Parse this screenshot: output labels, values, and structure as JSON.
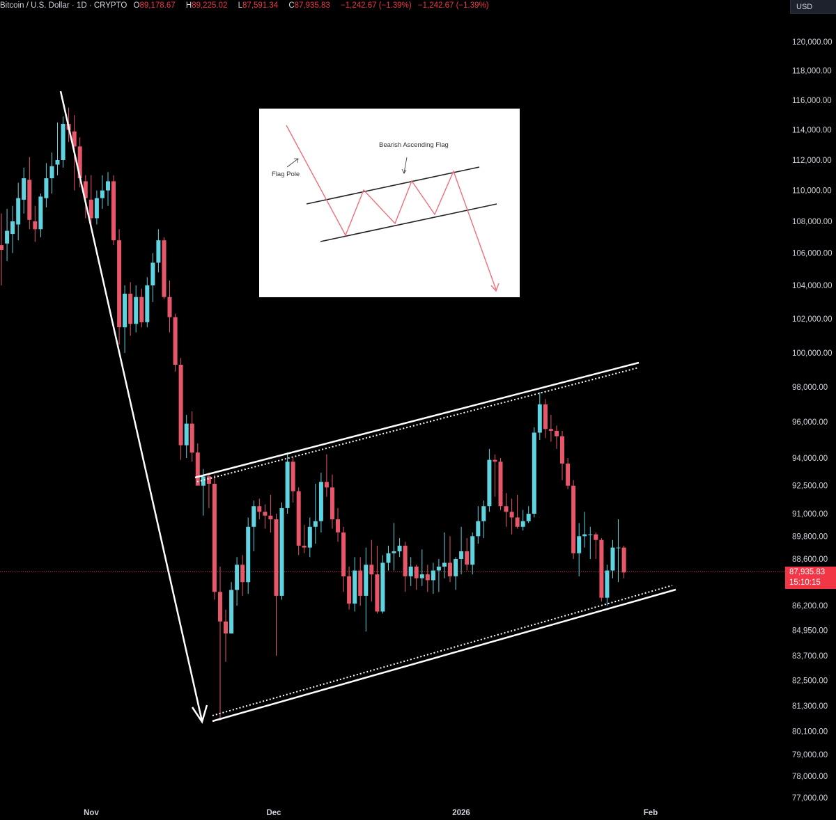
{
  "header": {
    "symbol": "Bitcoin / U.S. Dollar · 1D · CRYPTO",
    "open_label": "O",
    "open": "89,178.67",
    "high_label": "H",
    "high": "89,225.02",
    "low_label": "L",
    "low": "87,591.34",
    "close_label": "C",
    "close": "87,935.83",
    "change": "−1,242.67 (−1.39%)",
    "change2": "−1,242.67 (−1.39%)"
  },
  "currency": "USD",
  "price_badge": {
    "price": "87,935.83",
    "countdown": "15:10:15"
  },
  "inset": {
    "title": "Bearish Ascending Flag",
    "pole_label": "Flag Pole"
  },
  "colors": {
    "up": "#5fd3e0",
    "down": "#e8566a",
    "line": "#ffffff",
    "background": "#000000",
    "badge": "#f23645"
  },
  "chart_data": {
    "type": "candlestick",
    "yticks": [
      "120,000.00",
      "118,000.00",
      "116,000.00",
      "114,000.00",
      "112,000.00",
      "110,000.00",
      "108,000.00",
      "106,000.00",
      "104,000.00",
      "102,000.00",
      "100,000.00",
      "98,000.00",
      "96,000.00",
      "94,000.00",
      "92,500.00",
      "91,000.00",
      "89,800.00",
      "88,600.00",
      "86,200.00",
      "84,950.00",
      "83,700.00",
      "82,500.00",
      "81,300.00",
      "80,100.00",
      "79,000.00",
      "78,000.00",
      "77,000.00"
    ],
    "xticks": [
      "Nov",
      "Dec",
      "2026",
      "Feb"
    ],
    "last_price": 87935.83,
    "candles": [
      {
        "o": 106500,
        "h": 108500,
        "l": 104000,
        "c": 106200
      },
      {
        "o": 106600,
        "h": 108800,
        "l": 105500,
        "c": 107400
      },
      {
        "o": 107200,
        "h": 109000,
        "l": 106000,
        "c": 108000
      },
      {
        "o": 107800,
        "h": 110500,
        "l": 106800,
        "c": 109500
      },
      {
        "o": 109400,
        "h": 111500,
        "l": 108500,
        "c": 110800
      },
      {
        "o": 110700,
        "h": 112200,
        "l": 107500,
        "c": 108100
      },
      {
        "o": 108000,
        "h": 109000,
        "l": 106700,
        "c": 107500
      },
      {
        "o": 107500,
        "h": 109800,
        "l": 107000,
        "c": 109600
      },
      {
        "o": 109500,
        "h": 111800,
        "l": 108900,
        "c": 110800
      },
      {
        "o": 110800,
        "h": 112500,
        "l": 109800,
        "c": 111600
      },
      {
        "o": 111700,
        "h": 114500,
        "l": 111000,
        "c": 112000
      },
      {
        "o": 112000,
        "h": 114900,
        "l": 111500,
        "c": 114400
      },
      {
        "o": 114400,
        "h": 115500,
        "l": 113200,
        "c": 114000
      },
      {
        "o": 113900,
        "h": 115000,
        "l": 110000,
        "c": 112900
      },
      {
        "o": 112900,
        "h": 113500,
        "l": 110200,
        "c": 110800
      },
      {
        "o": 110600,
        "h": 111000,
        "l": 108200,
        "c": 109500
      },
      {
        "o": 109400,
        "h": 111000,
        "l": 107600,
        "c": 108200
      },
      {
        "o": 108200,
        "h": 110000,
        "l": 107800,
        "c": 109500
      },
      {
        "o": 109500,
        "h": 111000,
        "l": 108800,
        "c": 110000
      },
      {
        "o": 110000,
        "h": 111200,
        "l": 109000,
        "c": 110600
      },
      {
        "o": 110600,
        "h": 111000,
        "l": 106500,
        "c": 106800
      },
      {
        "o": 106800,
        "h": 107500,
        "l": 100500,
        "c": 101500
      },
      {
        "o": 101500,
        "h": 104000,
        "l": 100000,
        "c": 103500
      },
      {
        "o": 103500,
        "h": 104200,
        "l": 101000,
        "c": 101700
      },
      {
        "o": 101700,
        "h": 104000,
        "l": 101200,
        "c": 103300
      },
      {
        "o": 103300,
        "h": 103800,
        "l": 101500,
        "c": 101800
      },
      {
        "o": 101800,
        "h": 104500,
        "l": 101500,
        "c": 104000
      },
      {
        "o": 104000,
        "h": 106000,
        "l": 103000,
        "c": 105400
      },
      {
        "o": 105400,
        "h": 107500,
        "l": 104800,
        "c": 106800
      },
      {
        "o": 106800,
        "h": 107000,
        "l": 103200,
        "c": 103300
      },
      {
        "o": 103300,
        "h": 104300,
        "l": 101200,
        "c": 102100
      },
      {
        "o": 102100,
        "h": 102300,
        "l": 98900,
        "c": 99300
      },
      {
        "o": 99300,
        "h": 99700,
        "l": 93900,
        "c": 94700
      },
      {
        "o": 94700,
        "h": 96400,
        "l": 94000,
        "c": 95900
      },
      {
        "o": 95900,
        "h": 96600,
        "l": 93800,
        "c": 94300
      },
      {
        "o": 94300,
        "h": 94800,
        "l": 92500,
        "c": 92500
      },
      {
        "o": 92500,
        "h": 93400,
        "l": 90900,
        "c": 93000
      },
      {
        "o": 93000,
        "h": 93200,
        "l": 91300,
        "c": 92600
      },
      {
        "o": 92600,
        "h": 93100,
        "l": 86500,
        "c": 86900
      },
      {
        "o": 86900,
        "h": 88200,
        "l": 80600,
        "c": 85400
      },
      {
        "o": 85400,
        "h": 86000,
        "l": 83400,
        "c": 84800
      },
      {
        "o": 84800,
        "h": 87400,
        "l": 84800,
        "c": 87000
      },
      {
        "o": 87000,
        "h": 88700,
        "l": 86200,
        "c": 88300
      },
      {
        "o": 88300,
        "h": 88800,
        "l": 86700,
        "c": 87400
      },
      {
        "o": 87400,
        "h": 90800,
        "l": 86800,
        "c": 90300
      },
      {
        "o": 90300,
        "h": 91700,
        "l": 89000,
        "c": 91400
      },
      {
        "o": 91400,
        "h": 91800,
        "l": 90700,
        "c": 91100
      },
      {
        "o": 91100,
        "h": 91500,
        "l": 90200,
        "c": 90900
      },
      {
        "o": 90900,
        "h": 92000,
        "l": 90000,
        "c": 90700
      },
      {
        "o": 90700,
        "h": 91000,
        "l": 83700,
        "c": 86700
      },
      {
        "o": 86700,
        "h": 91600,
        "l": 86500,
        "c": 91300
      },
      {
        "o": 91300,
        "h": 94300,
        "l": 91000,
        "c": 93800
      },
      {
        "o": 93800,
        "h": 94000,
        "l": 91600,
        "c": 92200
      },
      {
        "o": 92200,
        "h": 92400,
        "l": 88800,
        "c": 89300
      },
      {
        "o": 89300,
        "h": 90400,
        "l": 88900,
        "c": 89200
      },
      {
        "o": 89200,
        "h": 90800,
        "l": 88700,
        "c": 90300
      },
      {
        "o": 90300,
        "h": 92600,
        "l": 89400,
        "c": 90600
      },
      {
        "o": 90600,
        "h": 93200,
        "l": 90000,
        "c": 92700
      },
      {
        "o": 92700,
        "h": 94200,
        "l": 91900,
        "c": 92400
      },
      {
        "o": 92400,
        "h": 93100,
        "l": 90200,
        "c": 90700
      },
      {
        "o": 90700,
        "h": 91300,
        "l": 89500,
        "c": 90000
      },
      {
        "o": 90000,
        "h": 90300,
        "l": 86900,
        "c": 87700
      },
      {
        "o": 87700,
        "h": 88200,
        "l": 86000,
        "c": 86300
      },
      {
        "o": 86300,
        "h": 88700,
        "l": 85900,
        "c": 88000
      },
      {
        "o": 88000,
        "h": 88700,
        "l": 86200,
        "c": 86700
      },
      {
        "o": 86700,
        "h": 89200,
        "l": 84900,
        "c": 88300
      },
      {
        "o": 88300,
        "h": 89600,
        "l": 86400,
        "c": 87800
      },
      {
        "o": 87800,
        "h": 89300,
        "l": 85800,
        "c": 85900
      },
      {
        "o": 85900,
        "h": 88800,
        "l": 85800,
        "c": 88400
      },
      {
        "o": 88400,
        "h": 89300,
        "l": 88000,
        "c": 88900
      },
      {
        "o": 88900,
        "h": 90500,
        "l": 88000,
        "c": 89000
      },
      {
        "o": 89000,
        "h": 89700,
        "l": 88700,
        "c": 89300
      },
      {
        "o": 89300,
        "h": 89500,
        "l": 86900,
        "c": 87700
      },
      {
        "o": 87700,
        "h": 88700,
        "l": 87200,
        "c": 88200
      },
      {
        "o": 88200,
        "h": 88300,
        "l": 87000,
        "c": 87600
      },
      {
        "o": 87600,
        "h": 89100,
        "l": 87200,
        "c": 87800
      },
      {
        "o": 87800,
        "h": 88300,
        "l": 86900,
        "c": 87500
      },
      {
        "o": 87500,
        "h": 88400,
        "l": 86800,
        "c": 88000
      },
      {
        "o": 88000,
        "h": 88600,
        "l": 86900,
        "c": 88200
      },
      {
        "o": 88200,
        "h": 90000,
        "l": 87600,
        "c": 88400
      },
      {
        "o": 88400,
        "h": 89800,
        "l": 87400,
        "c": 87700
      },
      {
        "o": 87700,
        "h": 88700,
        "l": 87000,
        "c": 88600
      },
      {
        "o": 88600,
        "h": 90300,
        "l": 87800,
        "c": 89000
      },
      {
        "o": 89000,
        "h": 89700,
        "l": 88000,
        "c": 88300
      },
      {
        "o": 88300,
        "h": 90000,
        "l": 87800,
        "c": 89800
      },
      {
        "o": 89800,
        "h": 91400,
        "l": 89400,
        "c": 90600
      },
      {
        "o": 90600,
        "h": 91700,
        "l": 89700,
        "c": 91400
      },
      {
        "o": 91400,
        "h": 94500,
        "l": 91100,
        "c": 93900
      },
      {
        "o": 93900,
        "h": 94200,
        "l": 91900,
        "c": 93800
      },
      {
        "o": 93800,
        "h": 94000,
        "l": 91200,
        "c": 91400
      },
      {
        "o": 91400,
        "h": 92100,
        "l": 90300,
        "c": 91100
      },
      {
        "o": 91100,
        "h": 91800,
        "l": 89900,
        "c": 90800
      },
      {
        "o": 90800,
        "h": 92000,
        "l": 90200,
        "c": 90300
      },
      {
        "o": 90300,
        "h": 91200,
        "l": 90100,
        "c": 90600
      },
      {
        "o": 90600,
        "h": 91400,
        "l": 90500,
        "c": 91000
      },
      {
        "o": 91000,
        "h": 95700,
        "l": 90800,
        "c": 95400
      },
      {
        "o": 95400,
        "h": 97700,
        "l": 95000,
        "c": 97000
      },
      {
        "o": 97000,
        "h": 97300,
        "l": 95100,
        "c": 95600
      },
      {
        "o": 95600,
        "h": 96400,
        "l": 94900,
        "c": 95500
      },
      {
        "o": 95500,
        "h": 95800,
        "l": 94500,
        "c": 95200
      },
      {
        "o": 95200,
        "h": 95500,
        "l": 92800,
        "c": 93700
      },
      {
        "o": 93700,
        "h": 94000,
        "l": 92300,
        "c": 92500
      },
      {
        "o": 92500,
        "h": 92800,
        "l": 88600,
        "c": 88900
      },
      {
        "o": 88900,
        "h": 90500,
        "l": 87700,
        "c": 89800
      },
      {
        "o": 89800,
        "h": 91100,
        "l": 89200,
        "c": 89900
      },
      {
        "o": 89900,
        "h": 90300,
        "l": 88600,
        "c": 89900
      },
      {
        "o": 89900,
        "h": 90000,
        "l": 88600,
        "c": 89600
      },
      {
        "o": 89600,
        "h": 89700,
        "l": 86400,
        "c": 86600
      },
      {
        "o": 86600,
        "h": 88300,
        "l": 86200,
        "c": 88000
      },
      {
        "o": 88000,
        "h": 89600,
        "l": 87600,
        "c": 89200
      },
      {
        "o": 89200,
        "h": 90700,
        "l": 87400,
        "c": 89200
      },
      {
        "o": 89200,
        "h": 89300,
        "l": 87600,
        "c": 87900
      }
    ]
  }
}
